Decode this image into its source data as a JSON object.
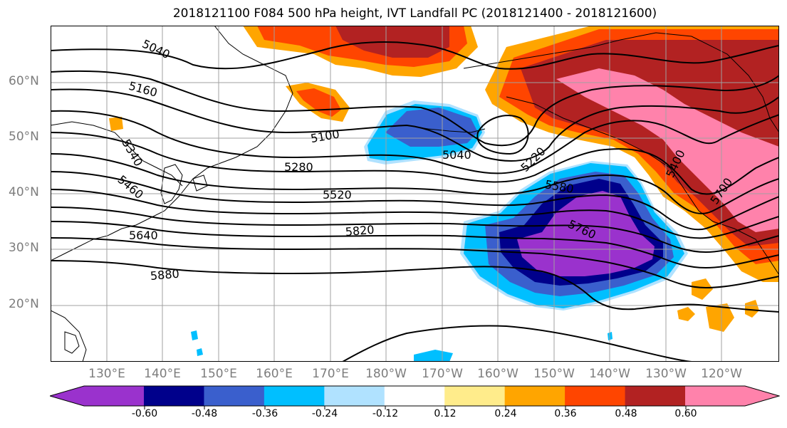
{
  "title": "2018121100 F084 500 hPa height, IVT Landfall PC (2018121400 - 2018121600)",
  "lat_ticks": [
    "60°N",
    "50°N",
    "40°N",
    "30°N",
    "20°N"
  ],
  "lon_ticks": [
    "130°E",
    "140°E",
    "150°E",
    "160°E",
    "170°E",
    "180°W",
    "170°W",
    "160°W",
    "150°W",
    "140°W",
    "130°W",
    "120°W"
  ],
  "contour_labels": [
    "5040",
    "5160",
    "5100",
    "5040",
    "5220",
    "5340",
    "5280",
    "5400",
    "5460",
    "5520",
    "5580",
    "5700",
    "5640",
    "5820",
    "5760",
    "5880"
  ],
  "colorbar": {
    "labels": [
      "-0.60",
      "-0.48",
      "-0.36",
      "-0.24",
      "-0.12",
      "0.12",
      "0.24",
      "0.36",
      "0.48",
      "0.60"
    ],
    "colors": [
      "#9a32cd",
      "#00008b",
      "#3a5fcd",
      "#00bfff",
      "#b0e2ff",
      "#ffffff",
      "#ffec8b",
      "#ffa500",
      "#ff4500",
      "#b22222",
      "#ff82ab"
    ]
  }
}
